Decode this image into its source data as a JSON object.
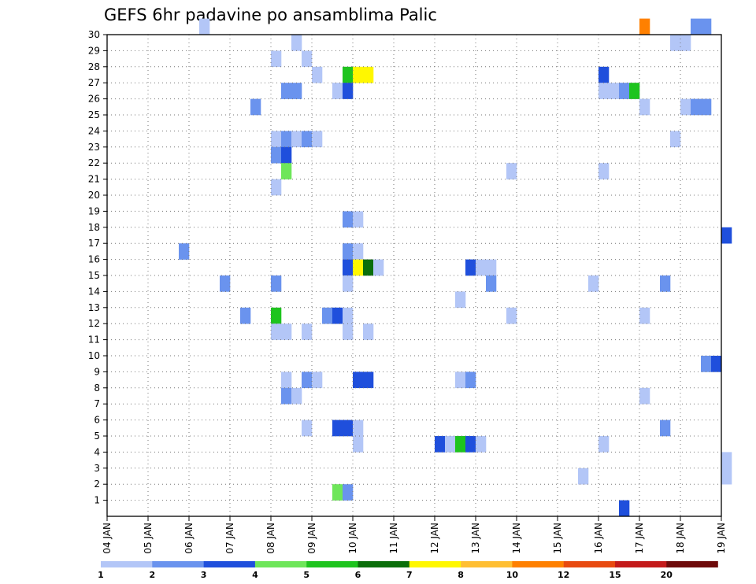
{
  "chart_data": {
    "type": "heatmap",
    "title": "GEFS 6hr padavine po ansamblima Palic",
    "x_labels": [
      "04 JAN",
      "05 JAN",
      "06 JAN",
      "07 JAN",
      "08 JAN",
      "09 JAN",
      "10 JAN",
      "11 JAN",
      "12 JAN",
      "13 JAN",
      "14 JAN",
      "15 JAN",
      "16 JAN",
      "17 JAN",
      "18 JAN",
      "19 JAN"
    ],
    "y_labels": [
      "1",
      "2",
      "3",
      "4",
      "5",
      "6",
      "7",
      "8",
      "9",
      "10",
      "11",
      "12",
      "13",
      "14",
      "15",
      "16",
      "17",
      "18",
      "19",
      "20",
      "21",
      "22",
      "23",
      "24",
      "25",
      "26",
      "27",
      "28",
      "29",
      "30"
    ],
    "steps_per_day": 4,
    "y_range": [
      0,
      30
    ],
    "grid": true,
    "legend_position": "bottom",
    "colorbar": {
      "labels": [
        "1",
        "2",
        "3",
        "4",
        "5",
        "6",
        "7",
        "8",
        "10",
        "12",
        "15",
        "20"
      ],
      "colors": [
        "#b3c6f7",
        "#6a93ee",
        "#1f4fdc",
        "#6ee65a",
        "#1ec41e",
        "#0a6e0a",
        "#fff700",
        "#ffbf33",
        "#ff8000",
        "#e84a10",
        "#c41a1a",
        "#6e0a0a"
      ]
    },
    "cells": [
      {
        "m": 30,
        "s": 9,
        "v": 1.5
      },
      {
        "m": 30,
        "s": 52,
        "v": 11
      },
      {
        "m": 30,
        "s": 57,
        "v": 2.5
      },
      {
        "m": 30,
        "s": 58,
        "v": 2.5
      },
      {
        "m": 29,
        "s": 18,
        "v": 1.5
      },
      {
        "m": 29,
        "s": 55,
        "v": 1.5
      },
      {
        "m": 29,
        "s": 56,
        "v": 1.5
      },
      {
        "m": 28,
        "s": 16,
        "v": 1.5
      },
      {
        "m": 28,
        "s": 19,
        "v": 1.5
      },
      {
        "m": 27,
        "s": 20,
        "v": 1.5
      },
      {
        "m": 27,
        "s": 23,
        "v": 5.5
      },
      {
        "m": 27,
        "s": 24,
        "v": 7.5
      },
      {
        "m": 27,
        "s": 25,
        "v": 7.5
      },
      {
        "m": 27,
        "s": 48,
        "v": 3.5
      },
      {
        "m": 26,
        "s": 17,
        "v": 2.5
      },
      {
        "m": 26,
        "s": 18,
        "v": 2.5
      },
      {
        "m": 26,
        "s": 22,
        "v": 1.5
      },
      {
        "m": 26,
        "s": 23,
        "v": 3.5
      },
      {
        "m": 26,
        "s": 48,
        "v": 1.5
      },
      {
        "m": 26,
        "s": 49,
        "v": 1.5
      },
      {
        "m": 26,
        "s": 50,
        "v": 2.5
      },
      {
        "m": 26,
        "s": 51,
        "v": 5.5
      },
      {
        "m": 25,
        "s": 14,
        "v": 2.5
      },
      {
        "m": 25,
        "s": 52,
        "v": 1.5
      },
      {
        "m": 25,
        "s": 56,
        "v": 1.5
      },
      {
        "m": 25,
        "s": 57,
        "v": 2.5
      },
      {
        "m": 25,
        "s": 58,
        "v": 2.5
      },
      {
        "m": 23,
        "s": 16,
        "v": 1.5
      },
      {
        "m": 23,
        "s": 17,
        "v": 2.5
      },
      {
        "m": 23,
        "s": 18,
        "v": 1.5
      },
      {
        "m": 23,
        "s": 19,
        "v": 2.5
      },
      {
        "m": 23,
        "s": 20,
        "v": 1.5
      },
      {
        "m": 23,
        "s": 55,
        "v": 1.5
      },
      {
        "m": 22,
        "s": 16,
        "v": 2.5
      },
      {
        "m": 22,
        "s": 17,
        "v": 3.5
      },
      {
        "m": 21,
        "s": 17,
        "v": 4.5
      },
      {
        "m": 21,
        "s": 39,
        "v": 1.5
      },
      {
        "m": 21,
        "s": 48,
        "v": 1.5
      },
      {
        "m": 20,
        "s": 16,
        "v": 1.5
      },
      {
        "m": 18,
        "s": 23,
        "v": 2.5
      },
      {
        "m": 18,
        "s": 24,
        "v": 1.5
      },
      {
        "m": 17,
        "s": 60,
        "v": 3.5
      },
      {
        "m": 16,
        "s": 7,
        "v": 2.5
      },
      {
        "m": 16,
        "s": 23,
        "v": 2.5
      },
      {
        "m": 16,
        "s": 24,
        "v": 1.5
      },
      {
        "m": 15,
        "s": 23,
        "v": 3.5
      },
      {
        "m": 15,
        "s": 24,
        "v": 7.5
      },
      {
        "m": 15,
        "s": 25,
        "v": 6.5
      },
      {
        "m": 15,
        "s": 26,
        "v": 1.5
      },
      {
        "m": 15,
        "s": 35,
        "v": 3.5
      },
      {
        "m": 15,
        "s": 36,
        "v": 1.5
      },
      {
        "m": 15,
        "s": 37,
        "v": 1.5
      },
      {
        "m": 14,
        "s": 11,
        "v": 2.5
      },
      {
        "m": 14,
        "s": 16,
        "v": 2.5
      },
      {
        "m": 14,
        "s": 23,
        "v": 1.5
      },
      {
        "m": 14,
        "s": 37,
        "v": 2.5
      },
      {
        "m": 14,
        "s": 47,
        "v": 1.5
      },
      {
        "m": 14,
        "s": 54,
        "v": 2.5
      },
      {
        "m": 13,
        "s": 34,
        "v": 1.5
      },
      {
        "m": 12,
        "s": 13,
        "v": 2.5
      },
      {
        "m": 12,
        "s": 16,
        "v": 5.5
      },
      {
        "m": 12,
        "s": 21,
        "v": 2.5
      },
      {
        "m": 12,
        "s": 22,
        "v": 3.5
      },
      {
        "m": 12,
        "s": 23,
        "v": 1.5
      },
      {
        "m": 12,
        "s": 39,
        "v": 1.5
      },
      {
        "m": 12,
        "s": 52,
        "v": 1.5
      },
      {
        "m": 11,
        "s": 16,
        "v": 1.5
      },
      {
        "m": 11,
        "s": 17,
        "v": 1.5
      },
      {
        "m": 11,
        "s": 19,
        "v": 1.5
      },
      {
        "m": 11,
        "s": 23,
        "v": 1.5
      },
      {
        "m": 11,
        "s": 25,
        "v": 1.5
      },
      {
        "m": 9,
        "s": 58,
        "v": 2.5
      },
      {
        "m": 9,
        "s": 59,
        "v": 3.5
      },
      {
        "m": 8,
        "s": 17,
        "v": 1.5
      },
      {
        "m": 8,
        "s": 19,
        "v": 2.5
      },
      {
        "m": 8,
        "s": 20,
        "v": 1.5
      },
      {
        "m": 8,
        "s": 24,
        "v": 3.5
      },
      {
        "m": 8,
        "s": 25,
        "v": 3.5
      },
      {
        "m": 8,
        "s": 34,
        "v": 1.5
      },
      {
        "m": 8,
        "s": 35,
        "v": 2.5
      },
      {
        "m": 7,
        "s": 17,
        "v": 2.5
      },
      {
        "m": 7,
        "s": 18,
        "v": 1.5
      },
      {
        "m": 7,
        "s": 52,
        "v": 1.5
      },
      {
        "m": 5,
        "s": 19,
        "v": 1.5
      },
      {
        "m": 5,
        "s": 22,
        "v": 3.5
      },
      {
        "m": 5,
        "s": 23,
        "v": 3.5
      },
      {
        "m": 5,
        "s": 24,
        "v": 1.5
      },
      {
        "m": 5,
        "s": 54,
        "v": 2.5
      },
      {
        "m": 4,
        "s": 24,
        "v": 1.5
      },
      {
        "m": 4,
        "s": 32,
        "v": 3.5
      },
      {
        "m": 4,
        "s": 33,
        "v": 1.5
      },
      {
        "m": 4,
        "s": 34,
        "v": 5.5
      },
      {
        "m": 4,
        "s": 35,
        "v": 3.5
      },
      {
        "m": 4,
        "s": 36,
        "v": 1.5
      },
      {
        "m": 4,
        "s": 48,
        "v": 1.5
      },
      {
        "m": 3,
        "s": 60,
        "v": 1.5
      },
      {
        "m": 2,
        "s": 46,
        "v": 1.5
      },
      {
        "m": 2,
        "s": 60,
        "v": 1.5
      },
      {
        "m": 1,
        "s": 22,
        "v": 4.5
      },
      {
        "m": 1,
        "s": 23,
        "v": 2.5
      },
      {
        "m": 0,
        "s": 50,
        "v": 3.5
      }
    ]
  }
}
